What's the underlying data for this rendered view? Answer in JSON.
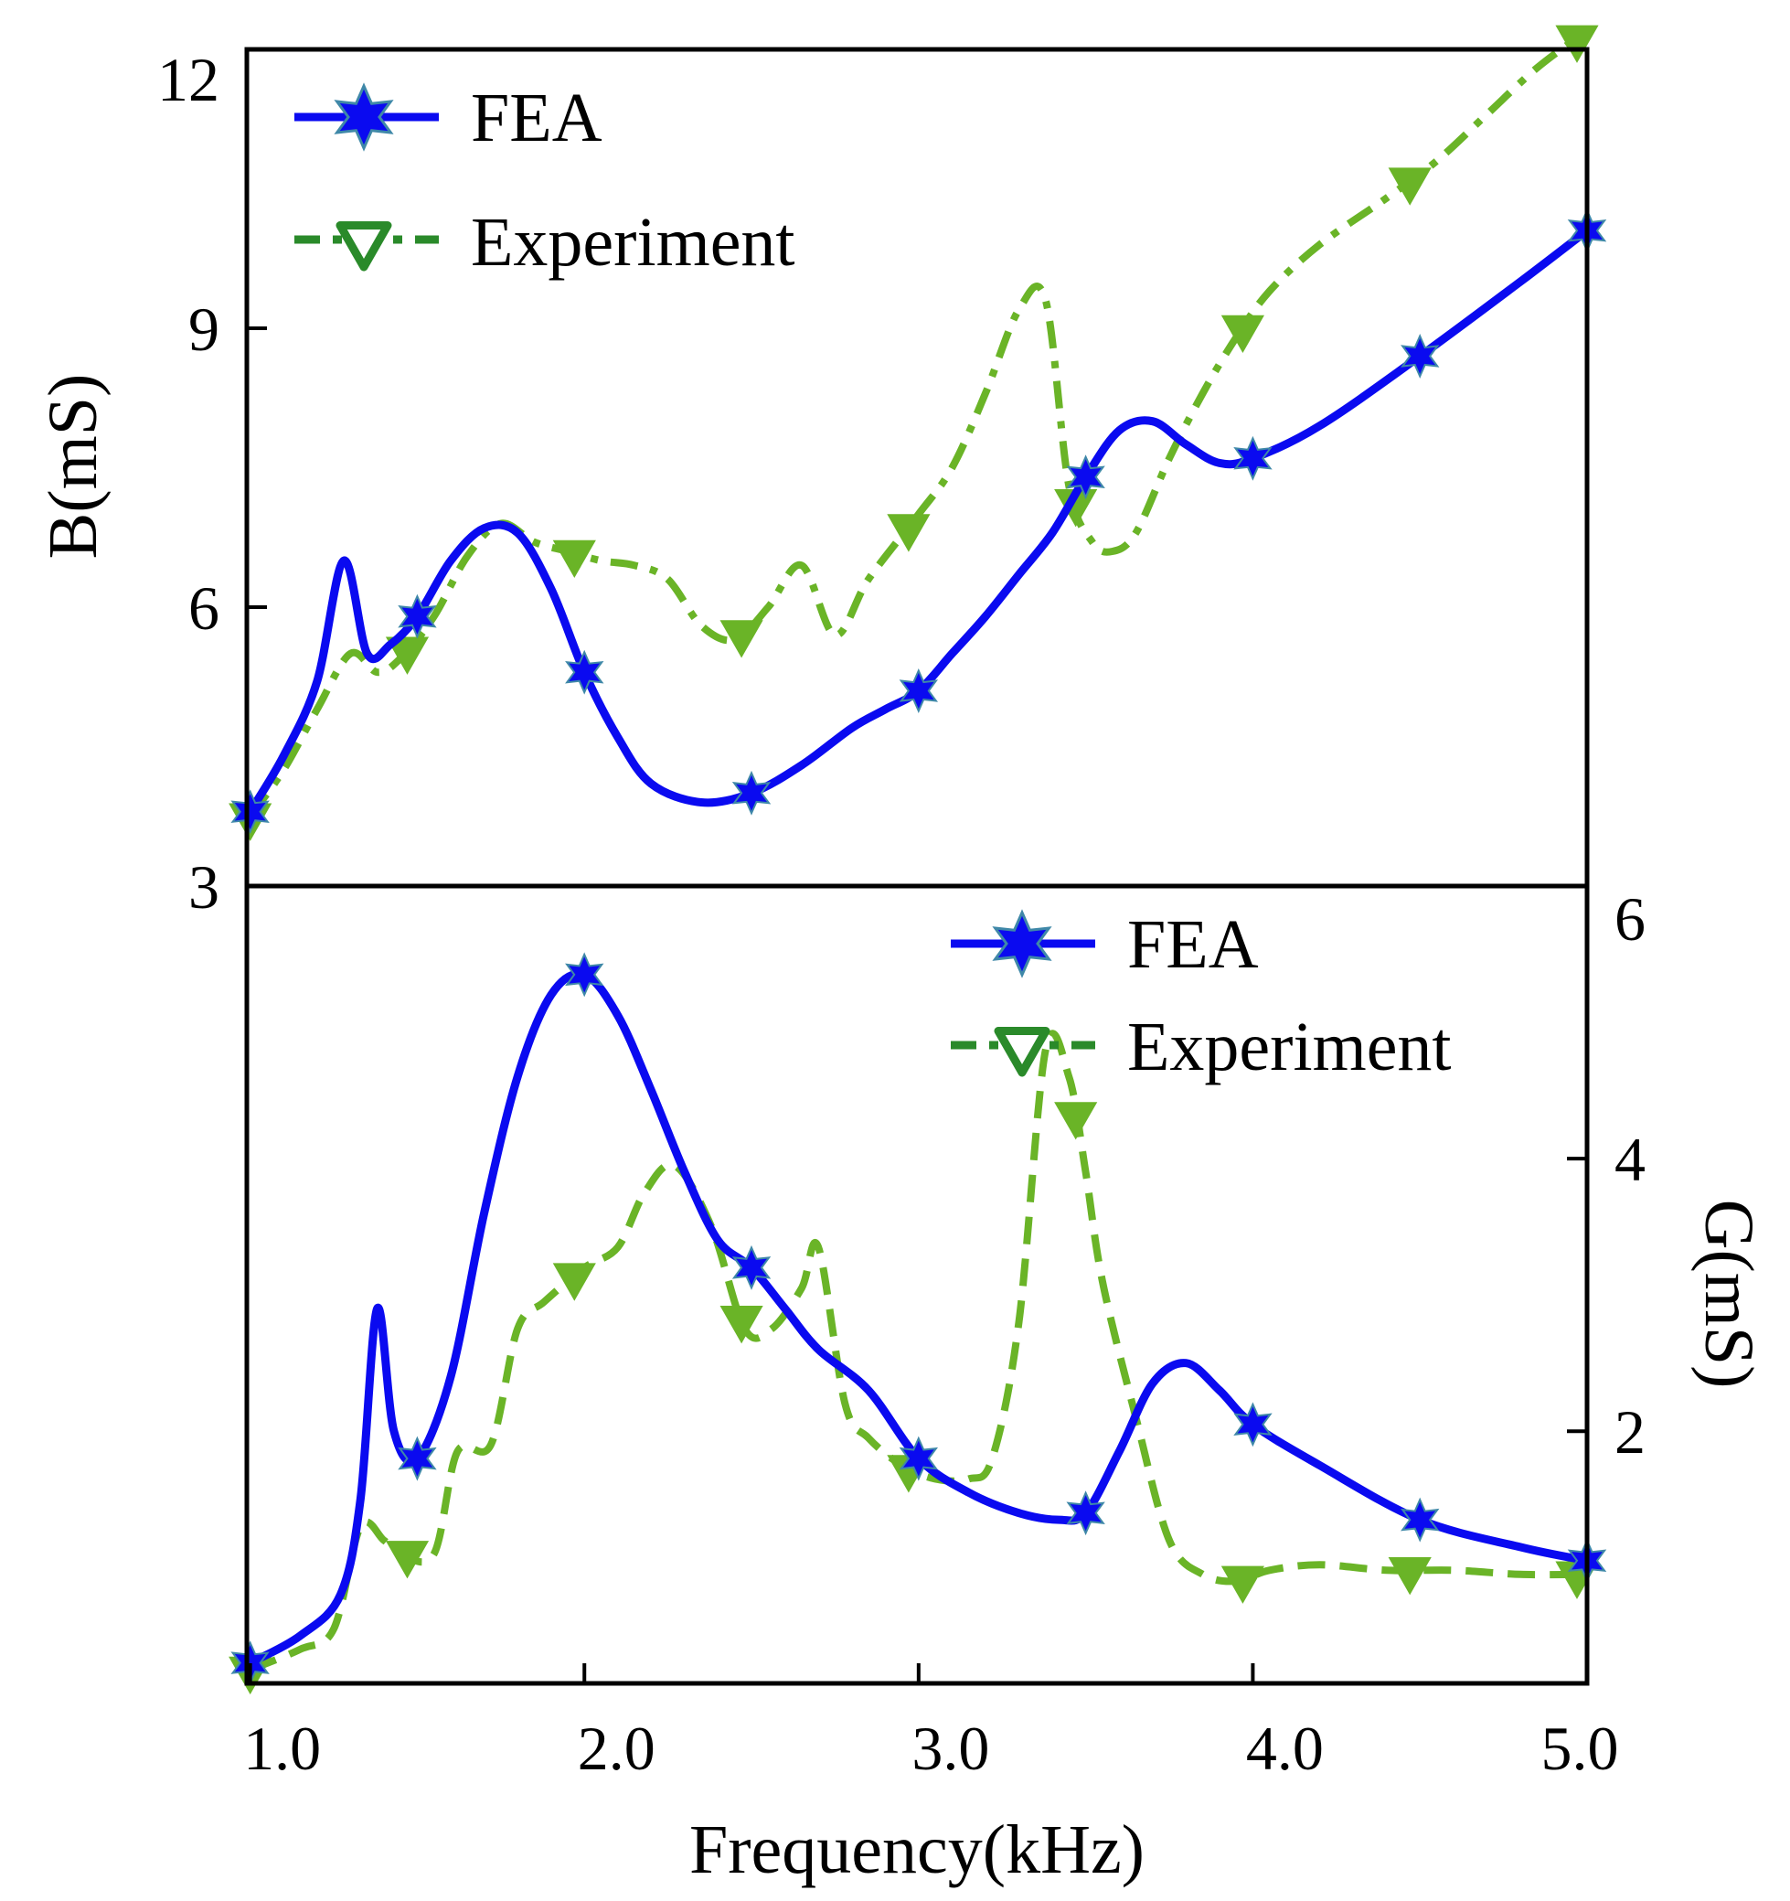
{
  "chart_data": [
    {
      "type": "line",
      "panel": "top",
      "xlabel": "Frequency(kHz)",
      "ylabel": "B(mS)",
      "xlim": [
        0.99,
        5.0
      ],
      "ylim": [
        3,
        12
      ],
      "xticks": [
        "1.0",
        "2.0",
        "3.0",
        "4.0",
        "5.0"
      ],
      "yticks": [
        "3",
        "6",
        "9",
        "12"
      ],
      "legend": {
        "placement": "top-left",
        "entries": [
          "FEA",
          "Experiment"
        ]
      },
      "series": [
        {
          "name": "FEA",
          "color": "#0a0af0",
          "style": "solid",
          "marker": "star",
          "x": [
            1.0,
            1.1,
            1.2,
            1.28,
            1.35,
            1.42,
            1.5,
            1.6,
            1.7,
            1.8,
            1.9,
            2.0,
            2.1,
            2.2,
            2.35,
            2.5,
            2.65,
            2.8,
            2.9,
            3.0,
            3.1,
            3.2,
            3.3,
            3.4,
            3.5,
            3.6,
            3.7,
            3.8,
            3.9,
            4.0,
            4.2,
            4.5,
            4.8,
            5.0
          ],
          "y": [
            3.8,
            4.4,
            5.2,
            6.5,
            5.5,
            5.6,
            5.9,
            6.5,
            6.85,
            6.8,
            6.2,
            5.3,
            4.6,
            4.1,
            3.9,
            4.0,
            4.3,
            4.7,
            4.9,
            5.1,
            5.5,
            5.9,
            6.35,
            6.8,
            7.4,
            7.9,
            8.0,
            7.75,
            7.55,
            7.6,
            7.95,
            8.7,
            9.5,
            10.05
          ]
        },
        {
          "name": "Experiment",
          "color": "#6ab427",
          "style": "dashdot",
          "marker": "triangle-down",
          "x": [
            1.0,
            1.1,
            1.2,
            1.3,
            1.38,
            1.45,
            1.55,
            1.65,
            1.75,
            1.85,
            1.95,
            2.05,
            2.15,
            2.25,
            2.35,
            2.45,
            2.55,
            2.65,
            2.75,
            2.85,
            3.0,
            3.1,
            3.2,
            3.3,
            3.38,
            3.45,
            3.52,
            3.58,
            3.65,
            3.75,
            3.85,
            3.95,
            4.05,
            4.2,
            4.4,
            4.55,
            4.7,
            4.85,
            5.0
          ],
          "y": [
            3.75,
            4.25,
            4.9,
            5.5,
            5.3,
            5.45,
            5.9,
            6.55,
            6.9,
            6.7,
            6.6,
            6.5,
            6.45,
            6.3,
            5.8,
            5.65,
            6.0,
            6.45,
            5.7,
            6.3,
            7.0,
            7.5,
            8.3,
            9.2,
            9.3,
            7.3,
            6.7,
            6.6,
            6.8,
            7.6,
            8.3,
            8.9,
            9.4,
            9.9,
            10.4,
            10.8,
            11.3,
            11.8,
            12.2
          ]
        }
      ]
    },
    {
      "type": "line",
      "panel": "bottom",
      "xlabel": "Frequency(kHz)",
      "ylabel": "G(mS)",
      "xlim": [
        0.99,
        5.0
      ],
      "ylim": [
        0.15,
        6
      ],
      "xticks": [
        "1.0",
        "2.0",
        "3.0",
        "4.0",
        "5.0"
      ],
      "yticks": [
        "2",
        "4",
        "6"
      ],
      "legend": {
        "placement": "top-right",
        "entries": [
          "FEA",
          "Experiment"
        ]
      },
      "series": [
        {
          "name": "FEA",
          "color": "#0a0af0",
          "style": "solid",
          "marker": "star",
          "x": [
            1.0,
            1.15,
            1.27,
            1.33,
            1.38,
            1.43,
            1.5,
            1.6,
            1.7,
            1.8,
            1.9,
            2.0,
            2.1,
            2.2,
            2.3,
            2.4,
            2.5,
            2.6,
            2.7,
            2.85,
            3.0,
            3.15,
            3.3,
            3.42,
            3.5,
            3.6,
            3.7,
            3.8,
            3.9,
            4.0,
            4.2,
            4.5,
            4.8,
            5.0
          ],
          "y": [
            0.3,
            0.5,
            0.8,
            1.5,
            2.9,
            2.0,
            1.8,
            2.4,
            3.6,
            4.6,
            5.2,
            5.35,
            5.05,
            4.5,
            3.9,
            3.4,
            3.2,
            2.9,
            2.6,
            2.3,
            1.8,
            1.55,
            1.4,
            1.35,
            1.4,
            1.85,
            2.35,
            2.5,
            2.3,
            2.05,
            1.75,
            1.35,
            1.15,
            1.05
          ]
        },
        {
          "name": "Experiment",
          "color": "#6ab427",
          "style": "dashed",
          "marker": "triangle-down",
          "x": [
            1.0,
            1.15,
            1.25,
            1.33,
            1.4,
            1.45,
            1.55,
            1.62,
            1.72,
            1.8,
            1.88,
            2.0,
            2.1,
            2.18,
            2.27,
            2.38,
            2.48,
            2.56,
            2.65,
            2.7,
            2.78,
            2.85,
            2.95,
            3.05,
            3.15,
            3.22,
            3.3,
            3.38,
            3.45,
            3.5,
            3.55,
            3.65,
            3.75,
            3.85,
            3.95,
            4.05,
            4.2,
            4.4,
            4.6,
            4.8,
            5.0
          ],
          "y": [
            0.25,
            0.4,
            0.55,
            1.3,
            1.2,
            1.1,
            1.1,
            1.85,
            1.9,
            2.75,
            2.95,
            3.2,
            3.35,
            3.75,
            3.95,
            3.5,
            2.75,
            2.75,
            3.05,
            3.35,
            2.2,
            1.95,
            1.75,
            1.65,
            1.65,
            1.8,
            2.8,
            4.8,
            4.6,
            3.9,
            3.1,
            2.1,
            1.2,
            0.95,
            0.9,
            0.98,
            1.02,
            0.98,
            0.98,
            0.95,
            0.95
          ]
        }
      ]
    }
  ]
}
